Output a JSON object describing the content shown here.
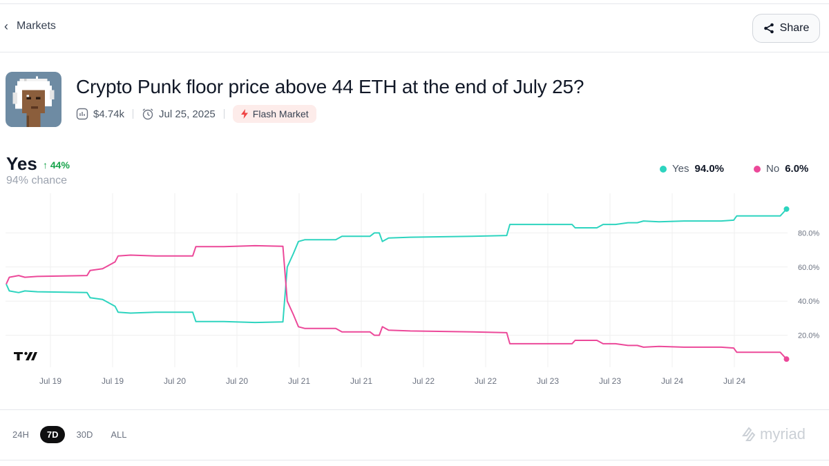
{
  "header": {
    "back_label": "Markets",
    "share_label": "Share"
  },
  "market": {
    "title": "Crypto Punk floor price above 44 ETH at the end of July 25?",
    "volume": "$4.74k",
    "end_date": "Jul 25, 2025",
    "tag": "Flash Market",
    "avatar_description_icon": "crypto-punk-avatar"
  },
  "summary": {
    "outcome": "Yes",
    "change": "44%",
    "chance": "94% chance"
  },
  "legend": [
    {
      "name": "Yes",
      "value": "94.0%",
      "color": "#2dd4bf"
    },
    {
      "name": "No",
      "value": "6.0%",
      "color": "#ec4899"
    }
  ],
  "colors": {
    "yes": "#2dd4bf",
    "no": "#ec4899",
    "grid": "#efefef"
  },
  "chart_data": {
    "type": "line",
    "x_tick_labels": [
      "Jul 19",
      "Jul 19",
      "Jul 20",
      "Jul 20",
      "Jul 21",
      "Jul 21",
      "Jul 22",
      "Jul 22",
      "Jul 23",
      "Jul 23",
      "Jul 24",
      "Jul 24"
    ],
    "y_tick_labels": [
      "20.0%",
      "40.0%",
      "60.0%",
      "80.0%"
    ],
    "ylim": [
      0,
      100
    ],
    "grid": true,
    "legend_position": "top-right",
    "x_index_range": [
      0,
      12.6
    ],
    "series": [
      {
        "name": "Yes",
        "points": [
          [
            0,
            50
          ],
          [
            0.05,
            46
          ],
          [
            0.2,
            45
          ],
          [
            0.3,
            46
          ],
          [
            0.5,
            45.5
          ],
          [
            1.3,
            45
          ],
          [
            1.35,
            42
          ],
          [
            1.55,
            41
          ],
          [
            1.75,
            37
          ],
          [
            1.8,
            33.5
          ],
          [
            2.0,
            33
          ],
          [
            2.4,
            33.5
          ],
          [
            3.0,
            33.5
          ],
          [
            3.05,
            28
          ],
          [
            3.5,
            28
          ],
          [
            4.0,
            27.5
          ],
          [
            4.45,
            27.8
          ],
          [
            4.52,
            60
          ],
          [
            4.62,
            68
          ],
          [
            4.7,
            75
          ],
          [
            4.8,
            76
          ],
          [
            5.3,
            76
          ],
          [
            5.4,
            78
          ],
          [
            5.85,
            78
          ],
          [
            5.92,
            80
          ],
          [
            6.0,
            80
          ],
          [
            6.05,
            75
          ],
          [
            6.15,
            77
          ],
          [
            6.5,
            77.5
          ],
          [
            7.5,
            78
          ],
          [
            8.05,
            78.5
          ],
          [
            8.1,
            85
          ],
          [
            8.6,
            85
          ],
          [
            9.1,
            85
          ],
          [
            9.15,
            83
          ],
          [
            9.5,
            83
          ],
          [
            9.6,
            85
          ],
          [
            9.8,
            85
          ],
          [
            10.0,
            86
          ],
          [
            10.15,
            86
          ],
          [
            10.25,
            87
          ],
          [
            10.5,
            86.5
          ],
          [
            10.9,
            87
          ],
          [
            11.1,
            87
          ],
          [
            11.5,
            87
          ],
          [
            11.7,
            87.5
          ],
          [
            11.75,
            90
          ],
          [
            12.2,
            90
          ],
          [
            12.45,
            90
          ],
          [
            12.55,
            94
          ]
        ]
      },
      {
        "name": "No",
        "points": [
          [
            0,
            50
          ],
          [
            0.05,
            54
          ],
          [
            0.2,
            55
          ],
          [
            0.3,
            54
          ],
          [
            0.5,
            54.5
          ],
          [
            1.3,
            55
          ],
          [
            1.35,
            58
          ],
          [
            1.55,
            59
          ],
          [
            1.75,
            63
          ],
          [
            1.8,
            66.5
          ],
          [
            2.0,
            67
          ],
          [
            2.4,
            66.5
          ],
          [
            3.0,
            66.5
          ],
          [
            3.05,
            72
          ],
          [
            3.5,
            72
          ],
          [
            4.0,
            72.5
          ],
          [
            4.45,
            72.2
          ],
          [
            4.52,
            40
          ],
          [
            4.62,
            32
          ],
          [
            4.7,
            25
          ],
          [
            4.8,
            24
          ],
          [
            5.3,
            24
          ],
          [
            5.4,
            22
          ],
          [
            5.85,
            22
          ],
          [
            5.92,
            20
          ],
          [
            6.0,
            20
          ],
          [
            6.05,
            25
          ],
          [
            6.15,
            23
          ],
          [
            6.5,
            22.5
          ],
          [
            7.5,
            22
          ],
          [
            8.05,
            21.5
          ],
          [
            8.1,
            15
          ],
          [
            8.6,
            15
          ],
          [
            9.1,
            15
          ],
          [
            9.15,
            17
          ],
          [
            9.5,
            17
          ],
          [
            9.6,
            15
          ],
          [
            9.8,
            15
          ],
          [
            10.0,
            14
          ],
          [
            10.15,
            14
          ],
          [
            10.25,
            13
          ],
          [
            10.5,
            13.5
          ],
          [
            10.9,
            13
          ],
          [
            11.1,
            13
          ],
          [
            11.5,
            13
          ],
          [
            11.7,
            12.5
          ],
          [
            11.75,
            10
          ],
          [
            12.2,
            10
          ],
          [
            12.45,
            10
          ],
          [
            12.55,
            6
          ]
        ]
      }
    ]
  },
  "ranges": [
    {
      "label": "24H",
      "active": false
    },
    {
      "label": "7D",
      "active": true
    },
    {
      "label": "30D",
      "active": false
    },
    {
      "label": "ALL",
      "active": false
    }
  ],
  "brand": {
    "name": "myriad"
  }
}
